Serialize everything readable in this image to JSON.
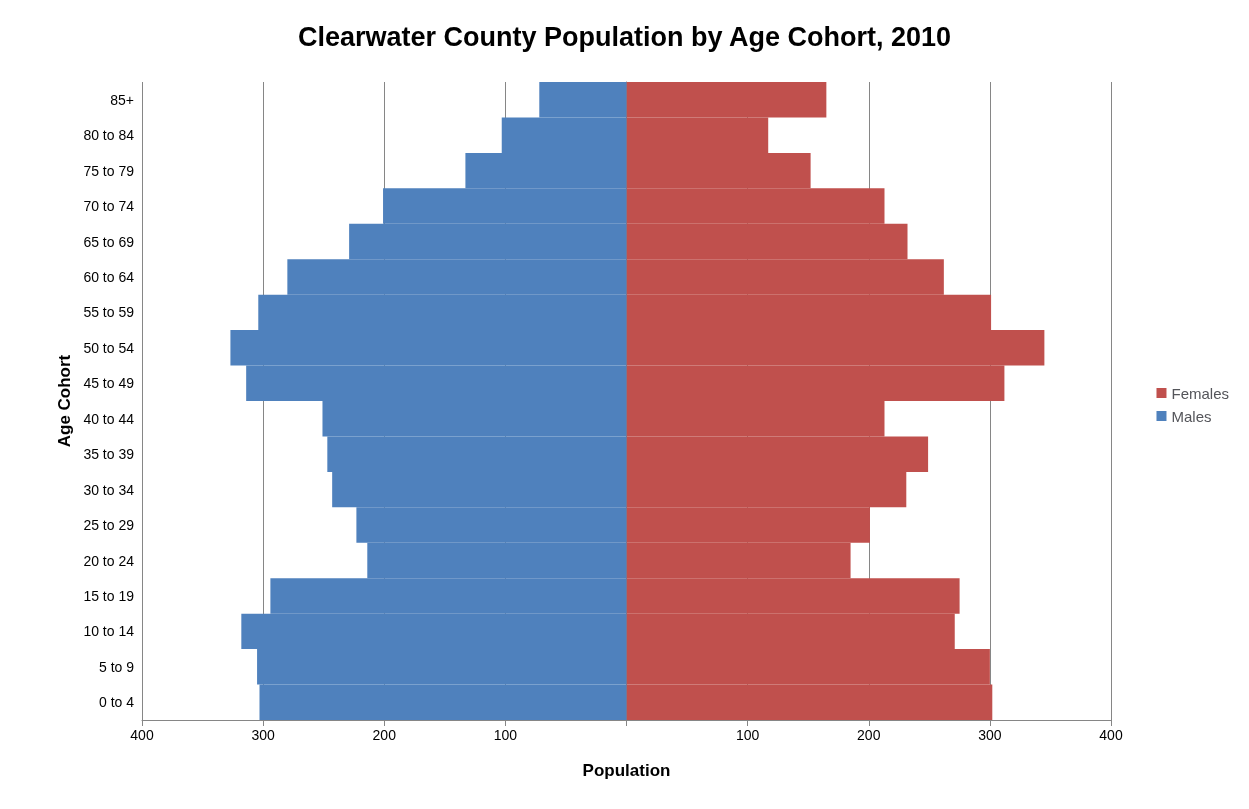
{
  "chart_data": {
    "type": "bar",
    "orientation": "horizontal",
    "stacked": true,
    "title": "Clearwater County Population by Age Cohort, 2010",
    "xlabel": "Population",
    "ylabel": "Age Cohort",
    "categories": [
      "85+",
      "80 to 84",
      "75 to 79",
      "70 to 74",
      "65 to 69",
      "60 to 64",
      "55 to 59",
      "50 to 54",
      "45 to 49",
      "40 to 44",
      "35 to 39",
      "30 to 34",
      "25 to 29",
      "20 to 24",
      "15 to 19",
      "10 to 14",
      "5 to 9",
      "0 to 4"
    ],
    "series": [
      {
        "name": "Females",
        "color": "#c0504d",
        "values": [
          165,
          117,
          152,
          213,
          232,
          262,
          301,
          345,
          312,
          213,
          249,
          231,
          201,
          185,
          275,
          271,
          300,
          302
        ]
      },
      {
        "name": "Males",
        "color": "#4f81bd",
        "values": [
          -72,
          -103,
          -133,
          -201,
          -229,
          -280,
          -304,
          -327,
          -314,
          -251,
          -247,
          -243,
          -223,
          -214,
          -294,
          -318,
          -305,
          -303
        ]
      }
    ],
    "xlim": [
      -400,
      400
    ],
    "xticks": [
      {
        "value": -400,
        "label": "400"
      },
      {
        "value": -300,
        "label": "300"
      },
      {
        "value": -200,
        "label": "200"
      },
      {
        "value": -100,
        "label": "100"
      },
      {
        "value": 0,
        "label": null
      },
      {
        "value": 100,
        "label": "100"
      },
      {
        "value": 200,
        "label": "200"
      },
      {
        "value": 300,
        "label": "300"
      },
      {
        "value": 400,
        "label": "400"
      }
    ],
    "grid": "x",
    "legend": "right"
  }
}
